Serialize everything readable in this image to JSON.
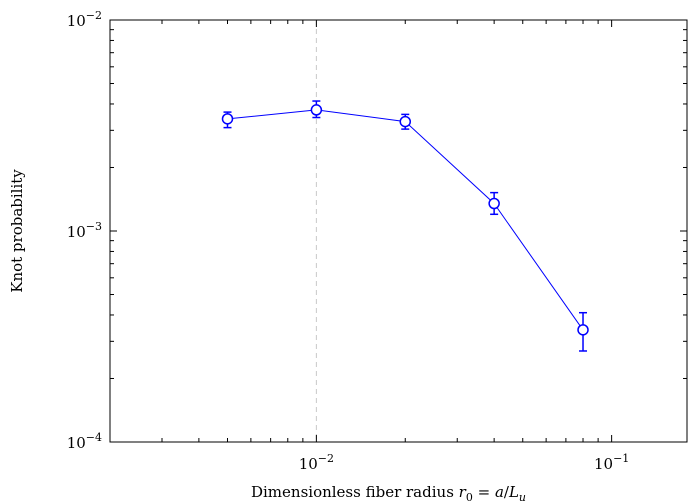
{
  "chart_data": {
    "type": "line",
    "title": "",
    "xlabel": "Dimensionless fiber radius r0 = a/Lu",
    "xlabel_parts": {
      "prefix": "Dimensionless fiber radius ",
      "var": "r",
      "var_sub": "0",
      "eq": " = ",
      "num": "a",
      "slash": "/",
      "den": "L",
      "den_sub": "u"
    },
    "ylabel": "Knot probability",
    "x_scale": "log",
    "y_scale": "log",
    "xlim": [
      0.002,
      0.18
    ],
    "ylim": [
      0.0001,
      0.01
    ],
    "grid": false,
    "legend": "none",
    "x_ticks": [
      {
        "value": 0.01,
        "base": "10",
        "exp": "−2"
      },
      {
        "value": 0.1,
        "base": "10",
        "exp": "−1"
      }
    ],
    "y_ticks": [
      {
        "value": 0.0001,
        "base": "10",
        "exp": "−4"
      },
      {
        "value": 0.001,
        "base": "10",
        "exp": "−3"
      },
      {
        "value": 0.01,
        "base": "10",
        "exp": "−2"
      }
    ],
    "reference_lines": [
      {
        "orientation": "vertical",
        "x": 0.01,
        "style": "dashed",
        "color": "#c8c8c8"
      }
    ],
    "series": [
      {
        "color": "#0000ff",
        "marker": "open-circle",
        "x": [
          0.005,
          0.01,
          0.02,
          0.04,
          0.08
        ],
        "y": [
          0.0034,
          0.00375,
          0.0033,
          0.00135,
          0.00034
        ],
        "y_err_low": [
          0.00031,
          0.0003,
          0.00026,
          0.00015,
          7e-05
        ],
        "y_err_high": [
          0.00026,
          0.00038,
          0.00027,
          0.00017,
          7e-05
        ]
      }
    ]
  }
}
